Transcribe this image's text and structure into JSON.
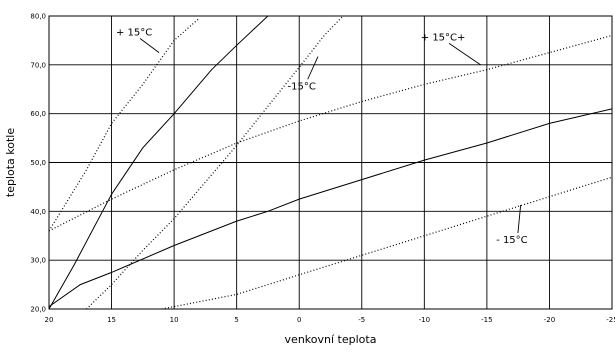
{
  "chart_data": {
    "type": "line",
    "xlabel": "venkovní teplota",
    "ylabel": "teplota kotle",
    "xlim": [
      20,
      -25
    ],
    "ylim": [
      20,
      80
    ],
    "x_ticks": [
      20,
      15,
      10,
      5,
      0,
      -5,
      -10,
      -15,
      -20,
      -25
    ],
    "x_tick_labels": [
      "20",
      "15",
      "10",
      "5",
      "0",
      "-5",
      "-10",
      "-15",
      "-20",
      "-25"
    ],
    "y_ticks": [
      20,
      30,
      40,
      50,
      60,
      70,
      80
    ],
    "y_tick_labels": [
      "20,0",
      "30,0",
      "40,0",
      "50,0",
      "60,0",
      "70,0",
      "80,0"
    ],
    "grid": true,
    "series": [
      {
        "style": "solid",
        "x": [
          20,
          18,
          15,
          12.5,
          10,
          7,
          5,
          2.5
        ],
        "y": [
          20,
          29,
          43.5,
          53,
          60,
          69,
          74,
          80
        ]
      },
      {
        "style": "solid",
        "x": [
          20,
          17.5,
          15,
          10,
          5,
          2.5,
          0,
          -5,
          -10,
          -15,
          -20,
          -25
        ],
        "y": [
          20.5,
          25,
          27.5,
          33,
          38,
          40,
          42.5,
          46.5,
          50.5,
          54,
          58,
          61
        ]
      },
      {
        "style": "dotted",
        "x": [
          20,
          17,
          15,
          12.5,
          10,
          8
        ],
        "y": [
          36,
          48.5,
          58,
          66,
          75,
          79.5
        ]
      },
      {
        "style": "dotted",
        "x": [
          17,
          15,
          12.5,
          10,
          7.5,
          5,
          2.5,
          0,
          -2,
          -3.5
        ],
        "y": [
          20,
          25,
          32,
          38.5,
          46,
          53.5,
          61.5,
          69.5,
          76,
          80
        ]
      },
      {
        "style": "dotted",
        "x": [
          20,
          15,
          10,
          5,
          0,
          -5,
          -10,
          -15,
          -20,
          -25
        ],
        "y": [
          36,
          42.5,
          48.5,
          54,
          58.5,
          62.5,
          66,
          69,
          72.5,
          76
        ]
      },
      {
        "style": "dotted",
        "x": [
          12,
          10,
          5,
          0,
          -5,
          -10,
          -15,
          -20,
          -25
        ],
        "y": [
          19.5,
          20.5,
          23,
          27,
          31,
          35,
          39,
          43,
          47
        ]
      }
    ],
    "annotations": [
      {
        "text": "+ 15°C",
        "x": 13.2,
        "y": 76,
        "arrow_to": [
          11.2,
          72.5
        ]
      },
      {
        "text": "-15°C",
        "x": -0.2,
        "y": 65,
        "arrow_to": [
          -1.5,
          71.7
        ]
      },
      {
        "text": "+ 15°C+",
        "x": -11.5,
        "y": 75,
        "arrow_to": [
          -14.5,
          70
        ]
      },
      {
        "text": "- 15°C",
        "x": -17,
        "y": 33.5,
        "arrow_to": [
          -17.7,
          41.3
        ]
      }
    ]
  }
}
